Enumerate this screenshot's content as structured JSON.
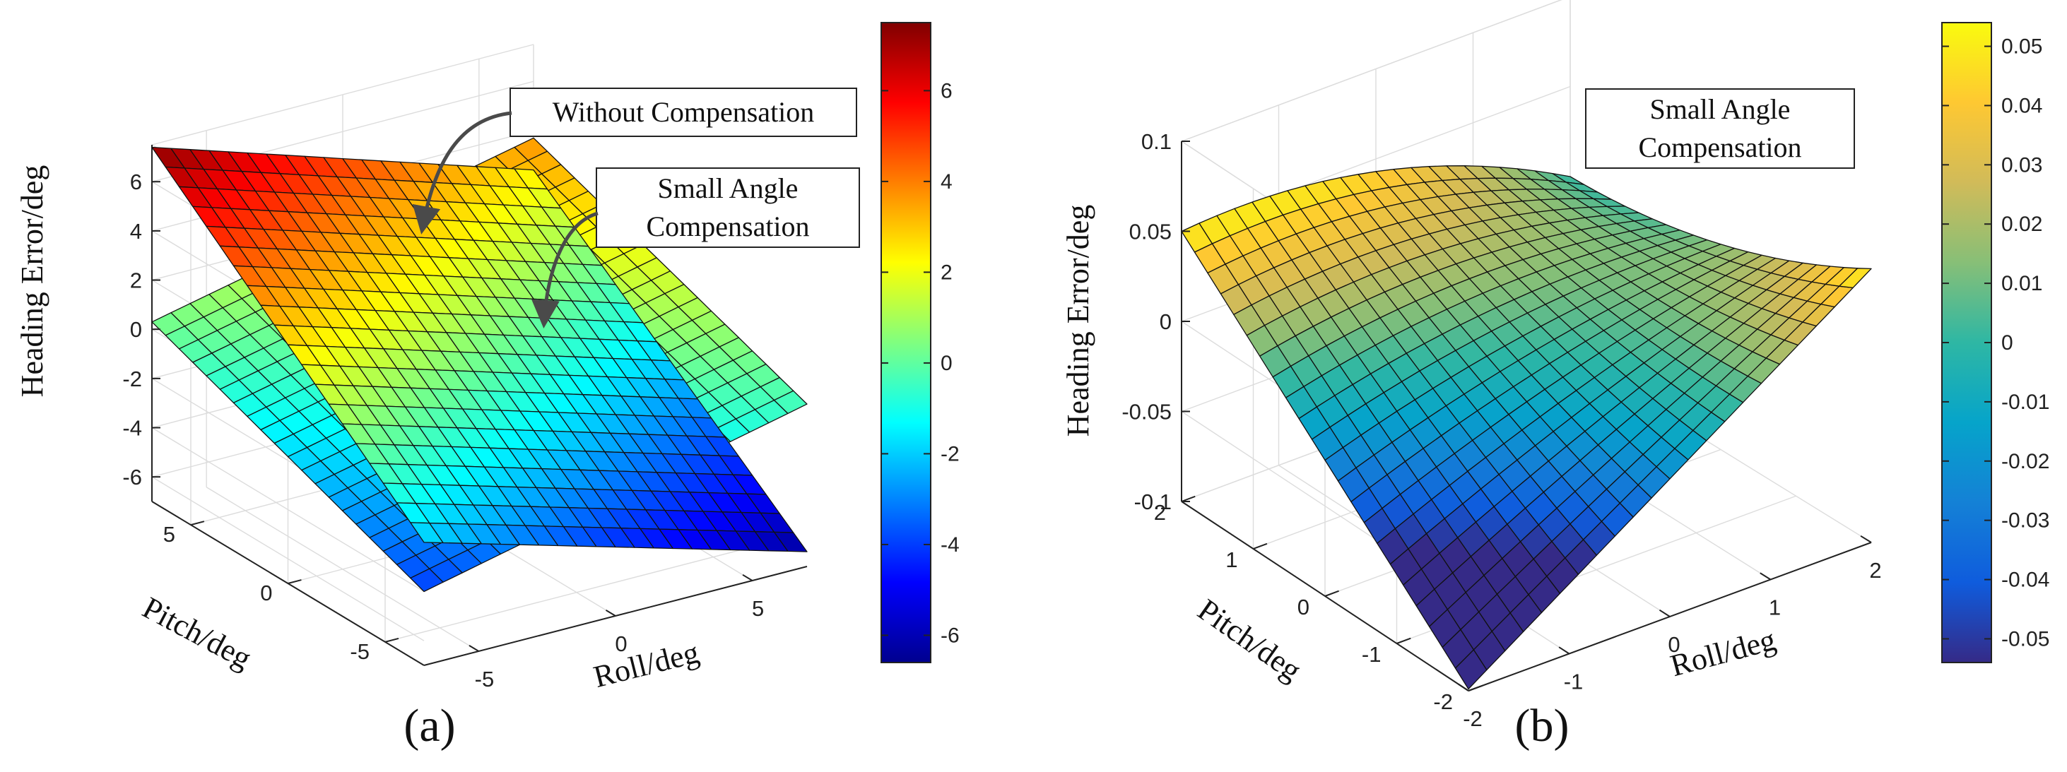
{
  "chart_data": [
    {
      "type": "surface3d",
      "panel_label": "(a)",
      "xlabel": "Roll/deg",
      "ylabel": "Pitch/deg",
      "zlabel": "Heading Error/deg",
      "xlim": [
        -7,
        7
      ],
      "ylim": [
        -7,
        7
      ],
      "zlim": [
        -7,
        7.5
      ],
      "xticks": [
        "-5",
        "0",
        "5"
      ],
      "yticks": [
        "-5",
        "0",
        "5"
      ],
      "zticks": [
        "-6",
        "-4",
        "-2",
        "0",
        "2",
        "4",
        "6"
      ],
      "grid": true,
      "surfaces": [
        {
          "name": "Without Compensation",
          "roll_range": [
            -7,
            7
          ],
          "pitch_range": [
            -7,
            7
          ],
          "z_corners": {
            "roll_min_pitch_max": 7.4,
            "roll_max_pitch_max": 2.4,
            "roll_min_pitch_min": -2.0,
            "roll_max_pitch_min": -6.4
          }
        },
        {
          "name": "Small Angle Compensation",
          "roll_range": [
            -7,
            7
          ],
          "pitch_range": [
            -7,
            7
          ],
          "z_corners": {
            "roll_min_pitch_max": 0.3,
            "roll_max_pitch_max": 3.7,
            "roll_min_pitch_min": -4.0,
            "roll_max_pitch_min": -0.4
          }
        }
      ],
      "annotations": [
        "Without Compensation",
        "Small Angle Compensation"
      ],
      "colorbar": {
        "colormap": "jet",
        "range": [
          -6.6,
          7.5
        ],
        "ticks": [
          "-6",
          "-4",
          "-2",
          "0",
          "2",
          "4",
          "6"
        ]
      }
    },
    {
      "type": "surface3d",
      "panel_label": "(b)",
      "xlabel": "Roll/deg",
      "ylabel": "Pitch/deg",
      "zlabel": "Heading Error/deg",
      "xlim": [
        -2,
        2
      ],
      "ylim": [
        -2,
        2
      ],
      "zlim": [
        -0.1,
        0.1
      ],
      "xticks": [
        "-2",
        "-1",
        "0",
        "1",
        "2"
      ],
      "yticks": [
        "-2",
        "-1",
        "0",
        "1",
        "2"
      ],
      "zticks": [
        "-0.1",
        "-0.05",
        "0",
        "0.05",
        "0.1"
      ],
      "grid": true,
      "surfaces": [
        {
          "name": "Small Angle Compensation",
          "roll_range": [
            -2,
            2
          ],
          "pitch_range": [
            -2,
            2
          ],
          "z_corners": {
            "roll_min_pitch_max": 0.05,
            "roll_max_pitch_max": 0.0,
            "roll_min_pitch_min": -0.099,
            "roll_max_pitch_min": 0.052
          }
        }
      ],
      "annotations": [
        "Small Angle\nCompensation"
      ],
      "annotation_lines": [
        "Small Angle",
        "Compensation"
      ],
      "colorbar": {
        "colormap": "parula",
        "range": [
          -0.054,
          0.054
        ],
        "ticks": [
          "-0.05",
          "-0.04",
          "-0.03",
          "-0.02",
          "-0.01",
          "0",
          "0.01",
          "0.02",
          "0.03",
          "0.04",
          "0.05"
        ]
      }
    }
  ]
}
